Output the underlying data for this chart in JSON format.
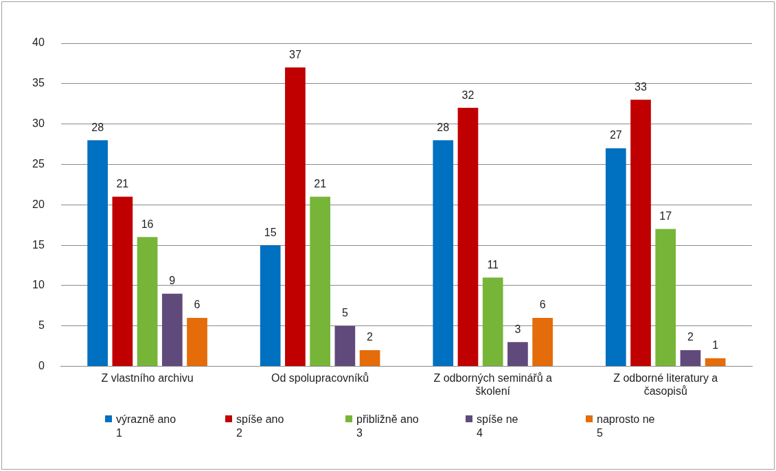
{
  "chart_data": {
    "type": "bar",
    "categories": [
      "Z vlastního archivu",
      "Od spolupracovníků",
      "Z odborných seminářů a školení",
      "Z odborné literatury a časopisů"
    ],
    "series": [
      {
        "name": "výrazně ano\n1",
        "color": "#0070c0",
        "values": [
          28,
          15,
          28,
          27
        ]
      },
      {
        "name": "spíše ano\n2",
        "color": "#c00000",
        "values": [
          21,
          37,
          32,
          33
        ]
      },
      {
        "name": "přibližně ano\n3",
        "color": "#77b539",
        "values": [
          16,
          21,
          11,
          17
        ]
      },
      {
        "name": "spíše ne\n4",
        "color": "#604a7b",
        "values": [
          9,
          5,
          3,
          2
        ]
      },
      {
        "name": "naprosto ne\n5",
        "color": "#e46c0a",
        "values": [
          6,
          2,
          6,
          1
        ]
      }
    ],
    "ylim": [
      0,
      40
    ],
    "yticks": [
      0,
      5,
      10,
      15,
      20,
      25,
      30,
      35,
      40
    ],
    "grid": "y",
    "legend": "bottom",
    "data_labels": true
  }
}
